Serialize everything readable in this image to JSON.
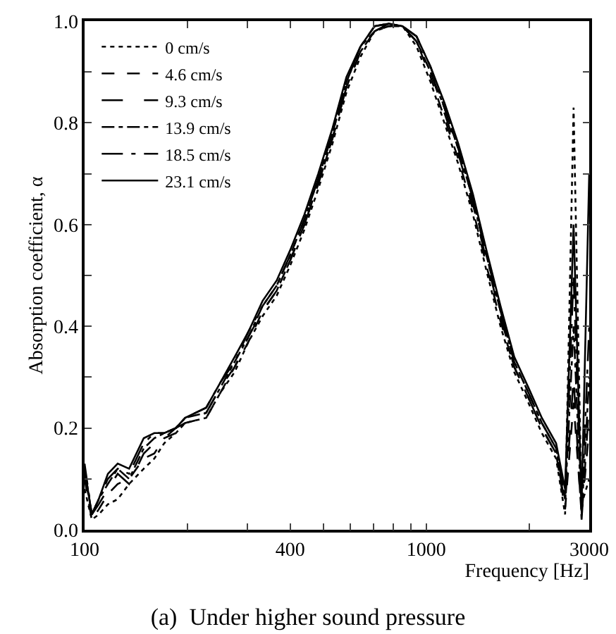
{
  "chart_data": {
    "type": "line",
    "title": "(a)  Under higher sound pressure",
    "xlabel": "Frequency [Hz]",
    "ylabel": "Absorption coefficient, α",
    "log": "x",
    "legend": "top left",
    "grid": false,
    "marker": "none",
    "xlim": [
      100,
      3000
    ],
    "xticks": [
      100,
      {
        "value": 200,
        "label": null
      },
      {
        "value": 300,
        "label": null
      },
      400,
      {
        "value": 500,
        "label": null
      },
      {
        "value": 600,
        "label": null
      },
      {
        "value": 700,
        "label": null
      },
      {
        "value": 800,
        "label": null
      },
      {
        "value": 900,
        "label": null
      },
      1000,
      {
        "value": 2000,
        "label": null
      },
      3000
    ],
    "ylim": [
      0,
      1
    ],
    "yticks": [
      {
        "value": 0,
        "label": "0.0"
      },
      {
        "value": 0.1,
        "label": null
      },
      {
        "value": 0.2,
        "label": "0.2"
      },
      {
        "value": 0.3,
        "label": null
      },
      {
        "value": 0.4,
        "label": "0.4"
      },
      {
        "value": 0.5,
        "label": null
      },
      {
        "value": 0.6,
        "label": "0.6"
      },
      {
        "value": 0.7,
        "label": null
      },
      {
        "value": 0.8,
        "label": "0.8"
      },
      {
        "value": 0.9,
        "label": null
      },
      {
        "value": 1,
        "label": "1.0"
      }
    ],
    "x": [
      100,
      105,
      110,
      117,
      125,
      135,
      149,
      160,
      171,
      185,
      197,
      227,
      250,
      275,
      302,
      332,
      365,
      400,
      440,
      483,
      532,
      584,
      642,
      706,
      776,
      853,
      937,
      1030,
      1130,
      1240,
      1370,
      1500,
      1650,
      1810,
      1990,
      2180,
      2400,
      2550,
      2700,
      2850,
      3000
    ],
    "series": [
      {
        "name": "0 cm/s",
        "color": "#000000",
        "line_style": "dotted",
        "values": [
          0.08,
          0.02,
          0.03,
          0.05,
          0.06,
          0.09,
          0.12,
          0.14,
          0.17,
          0.19,
          0.21,
          0.22,
          0.27,
          0.31,
          0.37,
          0.42,
          0.46,
          0.52,
          0.59,
          0.67,
          0.76,
          0.86,
          0.93,
          0.98,
          0.99,
          0.99,
          0.95,
          0.88,
          0.8,
          0.72,
          0.62,
          0.51,
          0.4,
          0.31,
          0.25,
          0.19,
          0.14,
          0.03,
          0.83,
          0.05,
          0.1
        ]
      },
      {
        "name": "4.6 cm/s",
        "color": "#000000",
        "line_style": "dash",
        "values": [
          0.1,
          0.02,
          0.04,
          0.07,
          0.09,
          0.1,
          0.14,
          0.15,
          0.18,
          0.19,
          0.21,
          0.22,
          0.27,
          0.32,
          0.37,
          0.43,
          0.47,
          0.53,
          0.6,
          0.68,
          0.77,
          0.87,
          0.94,
          0.98,
          0.99,
          0.99,
          0.96,
          0.89,
          0.81,
          0.73,
          0.63,
          0.52,
          0.41,
          0.32,
          0.26,
          0.2,
          0.15,
          0.04,
          0.25,
          0.03,
          0.2
        ]
      },
      {
        "name": "9.3 cm/s",
        "color": "#000000",
        "line_style": "longdash",
        "values": [
          0.11,
          0.03,
          0.05,
          0.08,
          0.11,
          0.09,
          0.15,
          0.17,
          0.18,
          0.2,
          0.21,
          0.23,
          0.28,
          0.32,
          0.38,
          0.43,
          0.47,
          0.53,
          0.6,
          0.68,
          0.77,
          0.87,
          0.94,
          0.98,
          0.995,
          0.99,
          0.96,
          0.9,
          0.82,
          0.74,
          0.64,
          0.53,
          0.42,
          0.32,
          0.26,
          0.2,
          0.15,
          0.05,
          0.3,
          0.02,
          0.25
        ]
      },
      {
        "name": "13.9 cm/s",
        "color": "#000000",
        "line_style": "dashdot",
        "values": [
          0.12,
          0.03,
          0.06,
          0.09,
          0.12,
          0.1,
          0.16,
          0.18,
          0.19,
          0.2,
          0.22,
          0.23,
          0.28,
          0.33,
          0.38,
          0.44,
          0.48,
          0.54,
          0.61,
          0.69,
          0.78,
          0.88,
          0.95,
          0.98,
          0.995,
          0.99,
          0.96,
          0.9,
          0.83,
          0.75,
          0.65,
          0.54,
          0.43,
          0.33,
          0.27,
          0.21,
          0.16,
          0.06,
          0.4,
          0.03,
          0.3
        ]
      },
      {
        "name": "18.5 cm/s",
        "color": "#000000",
        "line_style": "longdashdot",
        "values": [
          0.13,
          0.03,
          0.06,
          0.1,
          0.12,
          0.11,
          0.17,
          0.19,
          0.19,
          0.2,
          0.22,
          0.24,
          0.29,
          0.33,
          0.39,
          0.44,
          0.48,
          0.54,
          0.61,
          0.69,
          0.78,
          0.88,
          0.95,
          0.99,
          0.995,
          0.99,
          0.97,
          0.91,
          0.83,
          0.75,
          0.65,
          0.54,
          0.43,
          0.33,
          0.27,
          0.21,
          0.16,
          0.07,
          0.5,
          0.04,
          0.4
        ]
      },
      {
        "name": "23.1 cm/s",
        "color": "#000000",
        "line_style": "solid",
        "values": [
          0.12,
          0.03,
          0.06,
          0.11,
          0.13,
          0.12,
          0.18,
          0.19,
          0.19,
          0.2,
          0.22,
          0.24,
          0.29,
          0.34,
          0.39,
          0.45,
          0.49,
          0.55,
          0.62,
          0.7,
          0.79,
          0.89,
          0.95,
          0.99,
          0.995,
          0.99,
          0.97,
          0.91,
          0.84,
          0.76,
          0.66,
          0.55,
          0.44,
          0.34,
          0.28,
          0.22,
          0.17,
          0.08,
          0.6,
          0.05,
          0.7
        ]
      }
    ]
  }
}
